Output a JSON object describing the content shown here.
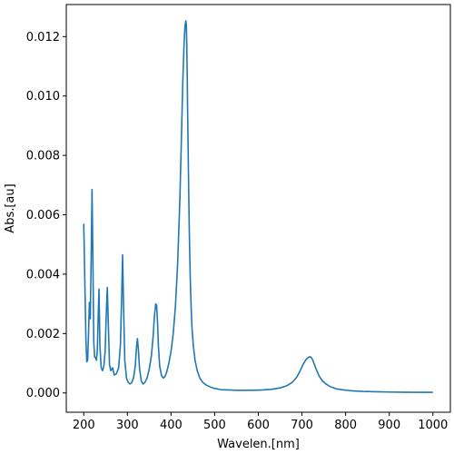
{
  "chart_data": {
    "type": "line",
    "title": "",
    "xlabel": "Wavelen.[nm]",
    "ylabel": "Abs.[au]",
    "xlim": [
      160,
      1040
    ],
    "ylim": [
      -0.00065,
      0.01308
    ],
    "xticks": [
      200,
      300,
      400,
      500,
      600,
      700,
      800,
      900,
      1000
    ],
    "yticks": [
      0.0,
      0.002,
      0.004,
      0.006,
      0.008,
      0.01,
      0.012
    ],
    "ytick_labels": [
      "0.000",
      "0.002",
      "0.004",
      "0.006",
      "0.008",
      "0.010",
      "0.012"
    ],
    "grid": false,
    "legend": "none",
    "line_color": "#1f77b4",
    "series": [
      {
        "x": [
          200,
          205,
          207,
          209,
          211,
          213,
          215,
          217,
          219,
          221,
          223,
          225,
          227,
          229,
          231,
          233,
          235,
          237,
          240,
          243,
          246,
          249,
          252,
          254,
          256,
          259,
          262,
          266,
          270,
          275,
          280,
          284,
          287,
          289,
          291,
          294,
          298,
          302,
          306,
          310,
          314,
          318,
          321,
          323,
          325,
          328,
          332,
          336,
          340,
          345,
          350,
          355,
          359,
          362,
          365,
          367,
          369,
          371,
          374,
          378,
          382,
          386,
          390,
          395,
          400,
          405,
          410,
          415,
          420,
          424,
          427,
          430,
          432,
          434,
          435,
          436,
          437,
          438,
          440,
          442,
          444,
          446,
          448,
          451,
          455,
          460,
          466,
          473,
          480,
          490,
          500,
          515,
          530,
          550,
          570,
          590,
          610,
          630,
          650,
          665,
          678,
          688,
          696,
          703,
          709,
          714,
          718,
          721,
          724,
          728,
          733,
          739,
          746,
          755,
          765,
          778,
          795,
          815,
          840,
          870,
          900,
          930,
          960,
          1000
        ],
        "y": [
          0.0057,
          0.0018,
          0.00105,
          0.0011,
          0.002,
          0.00305,
          0.0025,
          0.0045,
          0.00685,
          0.0045,
          0.0017,
          0.0012,
          0.0012,
          0.0011,
          0.0014,
          0.0025,
          0.0035,
          0.0016,
          0.00085,
          0.00075,
          0.0009,
          0.0014,
          0.0028,
          0.00355,
          0.0025,
          0.00095,
          0.00075,
          0.00085,
          0.0006,
          0.00065,
          0.00085,
          0.0016,
          0.0033,
          0.00465,
          0.0031,
          0.0011,
          0.0005,
          0.00035,
          0.0003,
          0.00035,
          0.0005,
          0.0009,
          0.00155,
          0.00183,
          0.0015,
          0.0008,
          0.0004,
          0.0003,
          0.00035,
          0.0005,
          0.0008,
          0.00125,
          0.0019,
          0.0026,
          0.003,
          0.00295,
          0.0024,
          0.0016,
          0.0009,
          0.0006,
          0.0005,
          0.00055,
          0.0007,
          0.001,
          0.0014,
          0.002,
          0.0029,
          0.0043,
          0.0064,
          0.0087,
          0.0105,
          0.0118,
          0.01235,
          0.01253,
          0.0124,
          0.0118,
          0.0108,
          0.0095,
          0.0073,
          0.0053,
          0.0039,
          0.0029,
          0.0022,
          0.0016,
          0.0011,
          0.00075,
          0.0005,
          0.00035,
          0.00027,
          0.0002,
          0.00015,
          0.00011,
          0.0001,
          9e-05,
          9e-05,
          9e-05,
          0.0001,
          0.00012,
          0.00017,
          0.00024,
          0.00036,
          0.00053,
          0.00075,
          0.00097,
          0.00112,
          0.00119,
          0.00122,
          0.0012,
          0.00113,
          0.00098,
          0.00078,
          0.00058,
          0.00042,
          0.0003,
          0.00021,
          0.00014,
          0.0001,
          7e-05,
          5e-05,
          4e-05,
          3e-05,
          2.5e-05,
          2e-05,
          2e-05
        ]
      }
    ]
  }
}
